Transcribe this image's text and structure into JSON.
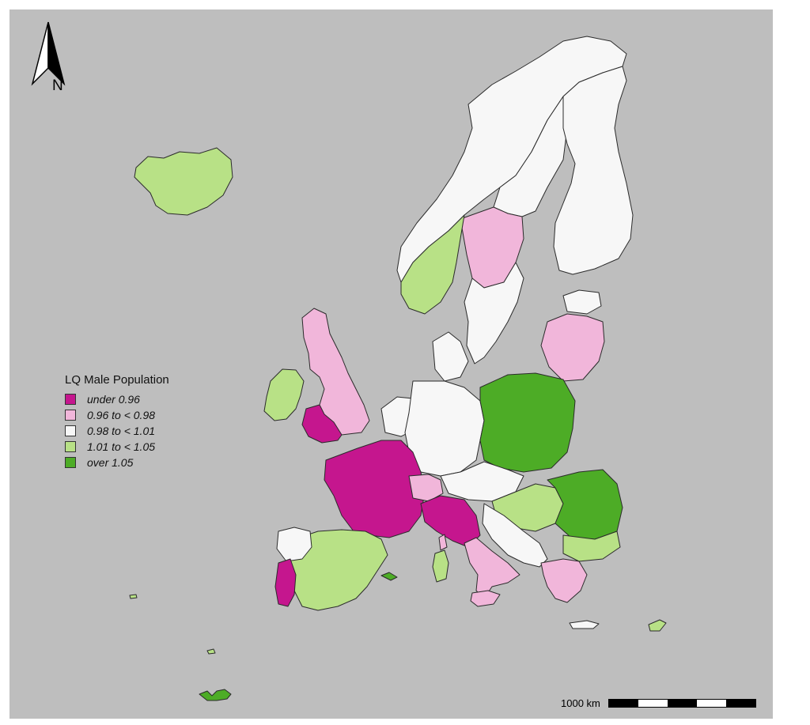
{
  "north_arrow": {
    "label": "N",
    "icon": "north-arrow-icon"
  },
  "legend": {
    "title": "LQ Male Population",
    "items": [
      {
        "label": "under 0.96",
        "color": "#c5168e"
      },
      {
        "label": "0.96  to < 0.98",
        "color": "#f1b6da"
      },
      {
        "label": "0.98  to < 1.01",
        "color": "#f7f7f7"
      },
      {
        "label": "1.01  to < 1.05",
        "color": "#b8e186"
      },
      {
        "label": "over 1.05",
        "color": "#4dac26"
      }
    ]
  },
  "scale": {
    "label": "1000 km",
    "segment_colors": [
      "#000000",
      "#ffffff",
      "#000000",
      "#ffffff",
      "#000000"
    ]
  },
  "colors": {
    "background": "#bebebe",
    "outline": "#2b2b2b"
  },
  "regions": [
    {
      "name": "iceland",
      "cls": 3
    },
    {
      "name": "norway",
      "cls": 2
    },
    {
      "name": "sweden-north",
      "cls": 2
    },
    {
      "name": "sweden-central",
      "cls": 1
    },
    {
      "name": "sweden-south",
      "cls": 2
    },
    {
      "name": "finland",
      "cls": 2
    },
    {
      "name": "norway-south",
      "cls": 3
    },
    {
      "name": "estonia",
      "cls": 2
    },
    {
      "name": "baltics",
      "cls": 1
    },
    {
      "name": "ireland",
      "cls": 3
    },
    {
      "name": "great-britain",
      "cls": 1
    },
    {
      "name": "wales",
      "cls": 0
    },
    {
      "name": "denmark",
      "cls": 2
    },
    {
      "name": "benelux",
      "cls": 2
    },
    {
      "name": "germany",
      "cls": 2
    },
    {
      "name": "poland",
      "cls": 4
    },
    {
      "name": "czechia-austria",
      "cls": 2
    },
    {
      "name": "hungary-slovakia",
      "cls": 3
    },
    {
      "name": "romania",
      "cls": 4
    },
    {
      "name": "bulgaria",
      "cls": 3
    },
    {
      "name": "france",
      "cls": 0
    },
    {
      "name": "switzerland",
      "cls": 1
    },
    {
      "name": "italy-north",
      "cls": 0
    },
    {
      "name": "italy-south",
      "cls": 1
    },
    {
      "name": "balkans",
      "cls": 2
    },
    {
      "name": "greece",
      "cls": 1
    },
    {
      "name": "spain",
      "cls": 3
    },
    {
      "name": "spain-northwest",
      "cls": 2
    },
    {
      "name": "portugal",
      "cls": 0
    },
    {
      "name": "sardinia",
      "cls": 3
    },
    {
      "name": "corsica",
      "cls": 1
    },
    {
      "name": "sicily",
      "cls": 1
    },
    {
      "name": "crete",
      "cls": 2
    },
    {
      "name": "cyprus",
      "cls": 3
    },
    {
      "name": "balearics",
      "cls": 4
    },
    {
      "name": "canaries",
      "cls": 4
    },
    {
      "name": "madeira",
      "cls": 3
    },
    {
      "name": "azores",
      "cls": 3
    }
  ]
}
